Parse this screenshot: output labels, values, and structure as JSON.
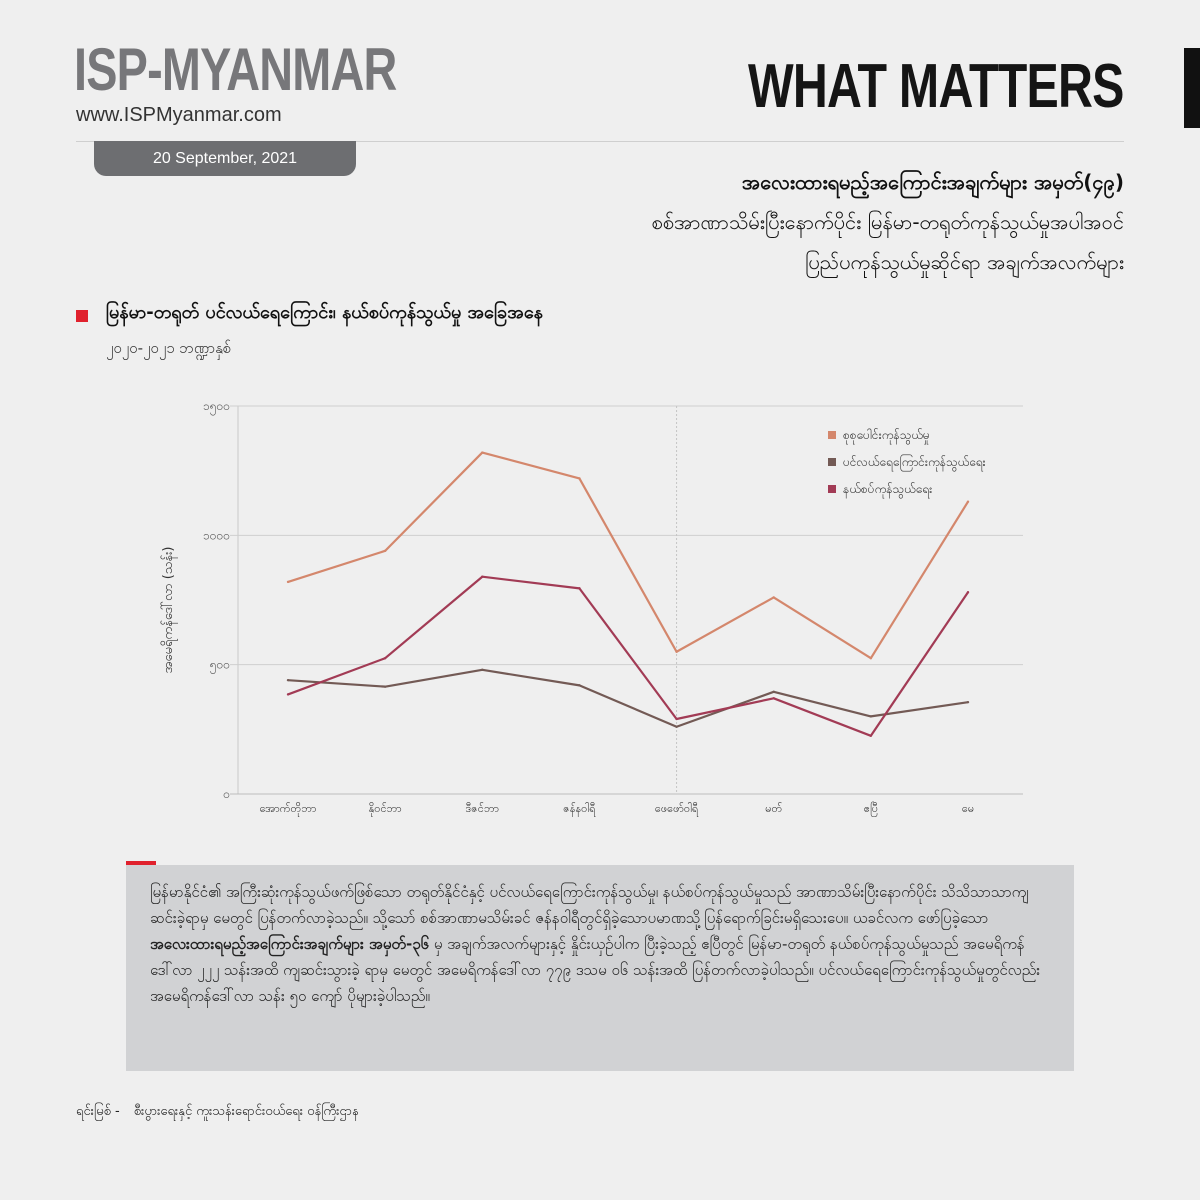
{
  "header": {
    "brand": "ISP-MYANMAR",
    "website": "www.ISPMyanmar.com",
    "date": "20 September, 2021",
    "series_label": "WHAT MATTERS"
  },
  "title": {
    "line1": "အလေးထားရမည့်အကြောင်းအချက်များ အမှတ်(၄၉)",
    "line2": "စစ်အာဏာသိမ်းပြီးနောက်ပိုင်း မြန်မာ-တရုတ်ကုန်သွယ်မှုအပါအဝင်",
    "line3": "ပြည်ပကုန်သွယ်မှုဆိုင်ရာ အချက်အလက်များ"
  },
  "chart_heading": {
    "title": "မြန်မာ-တရုတ် ပင်လယ်ရေကြောင်း၊ နယ်စပ်ကုန်သွယ်မှု အခြေအနေ",
    "subtitle": "၂၀၂၀-၂၀၂၁ ဘဏ္ဍာနှစ်"
  },
  "chart_data": {
    "type": "line",
    "ylabel": "အမေရိကန်ဒေါ်လာ (သန်း)",
    "xlabel": "",
    "ylim": [
      0,
      1500
    ],
    "ytick_values": [
      0,
      500,
      1000,
      1500
    ],
    "ytick_labels": [
      "၀",
      "၅၀၀",
      "၁၀၀၀",
      "၁၅၀၀"
    ],
    "categories": [
      "အောက်တိုဘာ",
      "နိုဝင်ဘာ",
      "ဒီဇင်ဘာ",
      "ဇန်နဝါရီ",
      "ဖေဖော်ဝါရီ",
      "မတ်",
      "ဧပြီ",
      "မေ"
    ],
    "divider_after_index": 4,
    "grid": "horizontal",
    "legend_position": "top-right",
    "series": [
      {
        "name": "စုစုပေါင်းကုန်သွယ်မှု",
        "color": "#d4876c",
        "values": [
          820,
          940,
          1320,
          1220,
          550,
          760,
          525,
          1130
        ]
      },
      {
        "name": "ပင်လယ်ရေကြောင်းကုန်သွယ်ရေး",
        "color": "#735a55",
        "values": [
          440,
          415,
          480,
          420,
          260,
          395,
          300,
          355
        ]
      },
      {
        "name": "နယ်စပ်ကုန်သွယ်ရေး",
        "color": "#a23b55",
        "values": [
          385,
          525,
          840,
          795,
          290,
          370,
          225,
          780
        ]
      }
    ]
  },
  "note": {
    "text_before": "မြန်မာနိုင်ငံ၏ အကြီးဆုံးကုန်သွယ်ဖက်ဖြစ်သော တရုတ်နိုင်ငံနှင့် ပင်လယ်ရေကြောင်းကုန်သွယ်မှု၊ နယ်စပ်ကုန်သွယ်မှုသည် အာဏာသိမ်းပြီးနောက်ပိုင်း သိသိသာသာကျဆင်းခဲ့ရာမှ မေတွင် ပြန်တက်လာခဲ့သည်။ သို့သော် စစ်အာဏာမသိမ်းခင် ဇန်နဝါရီတွင်ရှိခဲ့သောပမာဏသို့ပြန်ရောက်ခြင်းမရှိသေးပေ။ ယခင်လက ဖော်ပြခဲ့သော",
    "text_bold": "အလေးထားရမည့်အကြောင်းအချက်များ အမှတ်-၃၆",
    "text_after": " မှ အချက်အလက်များနှင့် နှိုင်းယှဉ်ပါက ပြီးခဲ့သည့် ဧပြီတွင် မြန်မာ-တရုတ် နယ်စပ်ကုန်သွယ်မှုသည် အမေရိကန်ဒေါ်လာ ၂၂၂ သန်းအထိ ကျဆင်းသွားခဲ့ ရာမှ မေတွင် အမေရိကန်ဒေါ်လာ ၇၇၉ ဒသမ ၀၆ သန်းအထိ ပြန်တက်လာခဲ့ပါသည်။ ပင်လယ်ရေကြောင်းကုန်သွယ်မှုတွင်လည်း အမေရိကန်ဒေါ်လာ သန်း ၅၀ ကျော် ပိုများခဲ့ပါသည်။"
  },
  "source": {
    "label": "ရင်းမြစ် -",
    "value": "စီးပွားရေးနှင့် ကူးသန်းရောင်းဝယ်ရေး ဝန်ကြီးဌာန"
  }
}
